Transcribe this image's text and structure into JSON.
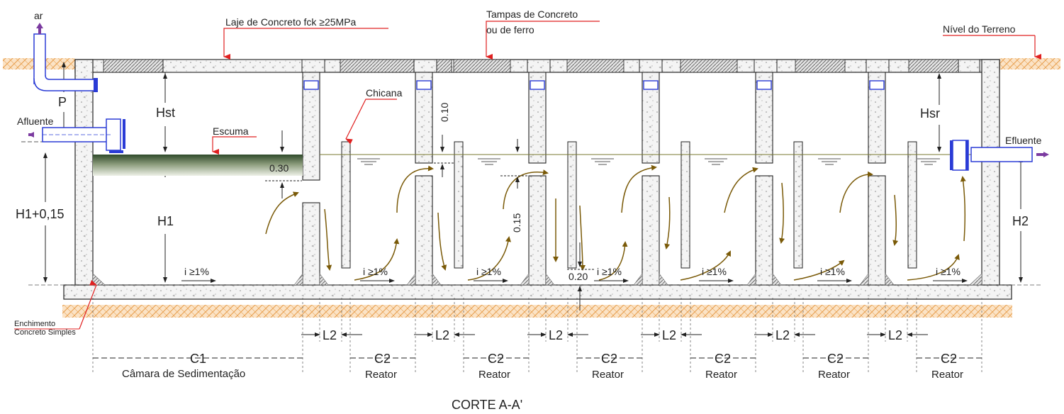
{
  "labels": {
    "air": "ar",
    "slab": "Laje de Concreto fck ≥25MPa",
    "lids_1": "Tampas de Concreto",
    "lids_2": "ou de ferro",
    "ground": "Nível do Terreno",
    "inflow": "Afluente",
    "outflow": "Efluente",
    "scum": "Escuma",
    "baffle": "Chicana",
    "fill_1": "Enchimento",
    "fill_2": "Concreto Simples",
    "caption": "CORTE A-A'"
  },
  "dimensions": {
    "p": "P",
    "hst": "Hst",
    "h1_015": "H1+0,15",
    "h1": "H1",
    "hsr": "Hsr",
    "h2": "H2",
    "d030": "0.30",
    "d010": "0.10",
    "d015": "0.15",
    "d020": "0.20",
    "slope": "i ≥1%",
    "c1": "C1",
    "c2": "C2",
    "l2": "L2"
  },
  "chambers": {
    "sedimentation": "Câmara de Sedimentação",
    "reactor": "Reator"
  },
  "colors": {
    "concrete_fill": "#f4f4f4",
    "outline": "#222222",
    "soil": "#f0b070",
    "pipe": "#2a3bd6",
    "flow_arrow": "#7a5a08",
    "water_line": "#7a7a30",
    "arrow_marker": "#7b3aa0",
    "leader": "#e02020",
    "scum_top": "#2f4a2a",
    "scum_bottom": "#e8ece0"
  }
}
